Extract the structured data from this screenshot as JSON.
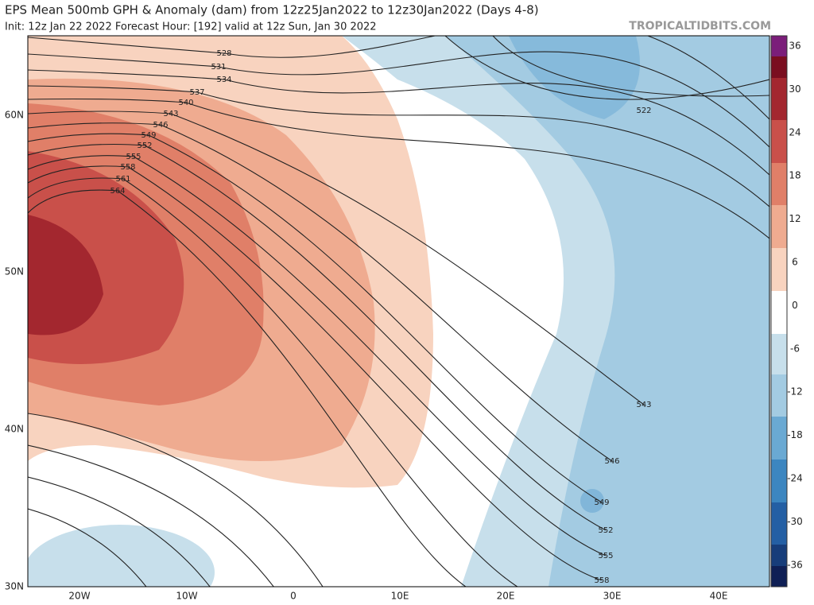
{
  "header": {
    "title": "EPS Mean 500mb GPH & Anomaly (dam) from 12z25Jan2022 to 12z30Jan2022 (Days 4-8)",
    "subtitle": "Init: 12z Jan 22 2022   Forecast Hour: [192]   valid at 12z Sun, Jan 30 2022",
    "site": "TROPICALTIDBITS.COM"
  },
  "map": {
    "lat_labels": [
      "60N",
      "50N",
      "40N",
      "30N"
    ],
    "lon_labels": [
      "20W",
      "10W",
      "0",
      "10E",
      "20E",
      "30E",
      "40E"
    ],
    "contour_labels": [
      528,
      531,
      534,
      537,
      540,
      543,
      546,
      549,
      552,
      555,
      558,
      561,
      564,
      522,
      543,
      546,
      549,
      552,
      555,
      558
    ]
  },
  "colorbar": {
    "labels": [
      36,
      30,
      24,
      18,
      12,
      6,
      0,
      -6,
      -12,
      -18,
      -24,
      -30,
      -36
    ]
  }
}
